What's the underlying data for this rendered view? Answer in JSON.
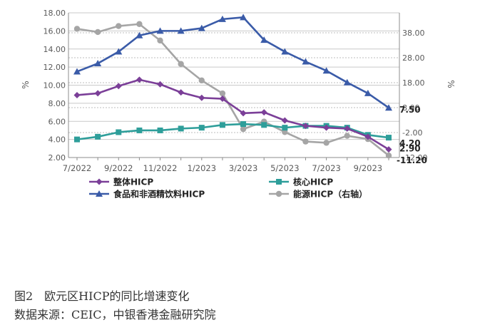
{
  "chart_data": {
    "type": "line",
    "x": [
      "2022-07",
      "2022-08",
      "2022-09",
      "2022-10",
      "2022-11",
      "2022-12",
      "2023-01",
      "2023-02",
      "2023-03",
      "2023-04",
      "2023-05",
      "2023-06",
      "2023-07",
      "2023-08",
      "2023-09",
      "2023-10"
    ],
    "xtick_labels": [
      "7/2022",
      "9/2022",
      "11/2022",
      "1/2023",
      "3/2023",
      "5/2023",
      "7/2023",
      "9/2023"
    ],
    "left_axis": {
      "label": "%",
      "ylim": [
        2,
        18
      ],
      "ticks": [
        "2.00",
        "4.00",
        "6.00",
        "8.00",
        "10.00",
        "12.00",
        "14.00",
        "16.00",
        "18.00"
      ]
    },
    "right_axis": {
      "label": "%",
      "ylim": [
        -12,
        46
      ],
      "ticks": [
        "-12.00",
        "-2.00",
        "8.00",
        "18.00",
        "28.00",
        "38.00"
      ]
    },
    "series": [
      {
        "name": "整体HICP",
        "axis": "left",
        "color": "#7B3F98",
        "marker": "diamond",
        "values": [
          8.9,
          9.1,
          9.9,
          10.6,
          10.1,
          9.2,
          8.6,
          8.5,
          6.9,
          7.0,
          6.1,
          5.5,
          5.3,
          5.2,
          4.3,
          2.9
        ]
      },
      {
        "name": "核心HICP",
        "axis": "left",
        "color": "#2E9E9A",
        "marker": "square",
        "values": [
          4.0,
          4.3,
          4.8,
          5.0,
          5.0,
          5.2,
          5.3,
          5.6,
          5.7,
          5.6,
          5.3,
          5.5,
          5.5,
          5.3,
          4.5,
          4.2
        ]
      },
      {
        "name": "食品和非酒精饮料HICP",
        "axis": "left",
        "color": "#3A5BA8",
        "marker": "triangle",
        "values": [
          11.5,
          12.4,
          13.7,
          15.5,
          16.0,
          16.0,
          16.3,
          17.3,
          17.5,
          15.0,
          13.7,
          12.6,
          11.6,
          10.3,
          9.1,
          7.5
        ]
      },
      {
        "name": "能源HICP（右轴）",
        "axis": "right",
        "color": "#A5A5A5",
        "marker": "circle",
        "values": [
          39.6,
          38.3,
          40.7,
          41.5,
          34.9,
          25.5,
          18.9,
          13.7,
          -0.6,
          2.4,
          -1.8,
          -5.6,
          -6.1,
          -3.3,
          -4.6,
          -11.2
        ]
      }
    ],
    "end_labels": [
      {
        "series": "食品和非酒精饮料HICP",
        "text": "7.50"
      },
      {
        "series": "核心HICP",
        "text": "4.20"
      },
      {
        "series": "整体HICP",
        "text": "2.90"
      },
      {
        "series": "能源HICP（右轴）",
        "text": "-11.20"
      }
    ],
    "legend": {
      "position": "bottom",
      "order": [
        "整体HICP",
        "核心HICP",
        "食品和非酒精饮料HICP",
        "能源HICP（右轴）"
      ]
    }
  },
  "caption": {
    "title": "图2　欧元区HICP的同比增速变化",
    "source": "数据来源：CEIC，中银香港金融研究院"
  }
}
